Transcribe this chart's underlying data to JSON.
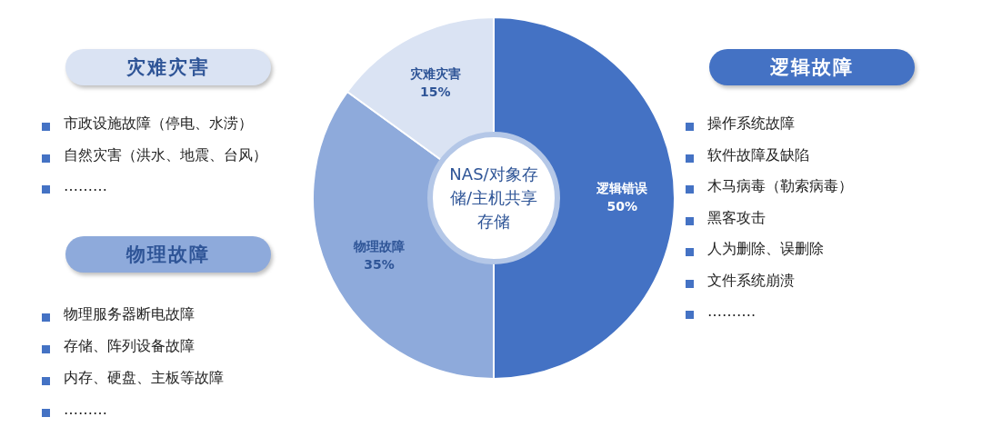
{
  "chart_data": {
    "type": "donut",
    "categories": [
      "逻辑错误",
      "物理故障",
      "灾难灾害"
    ],
    "values": [
      50,
      35,
      15
    ],
    "value_labels": [
      "50%",
      "35%",
      "15%"
    ],
    "colors": [
      "#4472c4",
      "#8eaadb",
      "#dae3f3"
    ],
    "legend": false,
    "annotations": [
      "NAS/对象存储/主机共享存储",
      "灾难灾害",
      "市政设施故障（停电、水涝）",
      "自然灾害（洪水、地震、台风）",
      "………",
      "物理故障",
      "物理服务器断电故障",
      "存储、阵列设备故障",
      "内存、硬盘、主板等故障",
      "………",
      "逻辑故障",
      "操作系统故障",
      "软件故障及缺陷",
      "木马病毒（勒索病毒）",
      "黑客攻击",
      "人为删除、误删除",
      "文件系统崩溃",
      "………."
    ]
  }
}
